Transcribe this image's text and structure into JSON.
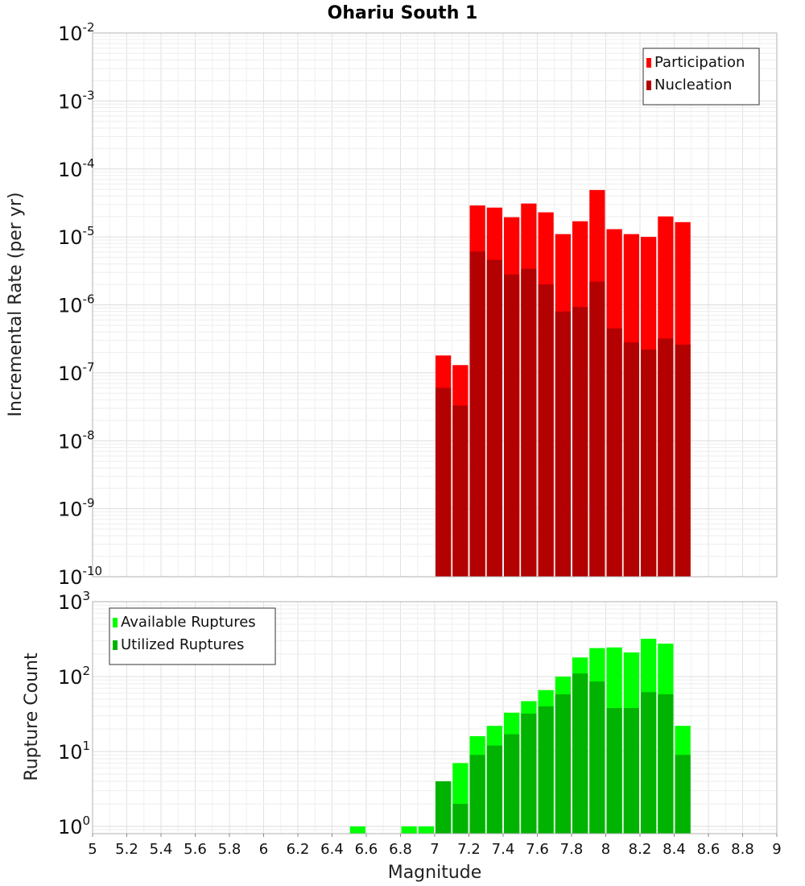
{
  "chart_data": [
    {
      "type": "bar",
      "title": "Ohariu South 1",
      "xlabel": "",
      "ylabel": "Incremental Rate (per yr)",
      "yscale": "log",
      "xlim": [
        5,
        9
      ],
      "ylim": [
        1e-10,
        0.01
      ],
      "y_ticks": [
        {
          "base": "10",
          "exp": "-2"
        },
        {
          "base": "10",
          "exp": "-3"
        },
        {
          "base": "10",
          "exp": "-4"
        },
        {
          "base": "10",
          "exp": "-5"
        },
        {
          "base": "10",
          "exp": "-6"
        },
        {
          "base": "10",
          "exp": "-7"
        },
        {
          "base": "10",
          "exp": "-8"
        },
        {
          "base": "10",
          "exp": "-9"
        },
        {
          "base": "10",
          "exp": "-10"
        }
      ],
      "legend_position": "top-right",
      "grid": true,
      "x": [
        7.05,
        7.15,
        7.25,
        7.35,
        7.45,
        7.55,
        7.65,
        7.75,
        7.85,
        7.95,
        8.05,
        8.15,
        8.25,
        8.35,
        8.45
      ],
      "series": [
        {
          "name": "Participation",
          "color": "#ff0000",
          "values": [
            1.8e-07,
            1.3e-07,
            2.9e-05,
            2.7e-05,
            1.95e-05,
            3.1e-05,
            2.3e-05,
            1.1e-05,
            1.7e-05,
            4.9e-05,
            1.3e-05,
            1.1e-05,
            1e-05,
            2e-05,
            1.65e-05
          ]
        },
        {
          "name": "Nucleation",
          "color": "#b30000",
          "values": [
            6e-08,
            3.3e-08,
            6.1e-06,
            4.6e-06,
            2.8e-06,
            3.4e-06,
            2e-06,
            8e-07,
            9.3e-07,
            2.2e-06,
            4.5e-07,
            2.8e-07,
            2.2e-07,
            3.2e-07,
            2.6e-07
          ]
        }
      ]
    },
    {
      "type": "bar",
      "title": "",
      "xlabel": "Magnitude",
      "ylabel": "Rupture Count",
      "yscale": "log",
      "xlim": [
        5,
        9
      ],
      "ylim": [
        0.8,
        1000
      ],
      "y_ticks": [
        {
          "base": "10",
          "exp": "3"
        },
        {
          "base": "10",
          "exp": "2"
        },
        {
          "base": "10",
          "exp": "1"
        },
        {
          "base": "10",
          "exp": "0"
        }
      ],
      "x_tick_labels": [
        "5",
        "5.2",
        "5.4",
        "5.6",
        "5.8",
        "6",
        "6.2",
        "6.4",
        "6.6",
        "6.8",
        "7",
        "7.2",
        "7.4",
        "7.6",
        "7.8",
        "8",
        "8.2",
        "8.4",
        "8.6",
        "8.8",
        "9"
      ],
      "legend_position": "top-left",
      "grid": true,
      "x": [
        6.55,
        6.85,
        6.95,
        7.05,
        7.15,
        7.25,
        7.35,
        7.45,
        7.55,
        7.65,
        7.75,
        7.85,
        7.95,
        8.05,
        8.15,
        8.25,
        8.35,
        8.45
      ],
      "series": [
        {
          "name": "Available Ruptures",
          "color": "#00ff00",
          "values": [
            1,
            1,
            1,
            4,
            7,
            16,
            22,
            33,
            47,
            66,
            100,
            180,
            240,
            245,
            210,
            320,
            275,
            22
          ]
        },
        {
          "name": "Utilized Ruptures",
          "color": "#00b300",
          "values": [
            0,
            0,
            0,
            4,
            2,
            9,
            12,
            17,
            32,
            40,
            58,
            110,
            86,
            38,
            38,
            62,
            58,
            9
          ]
        }
      ]
    }
  ]
}
